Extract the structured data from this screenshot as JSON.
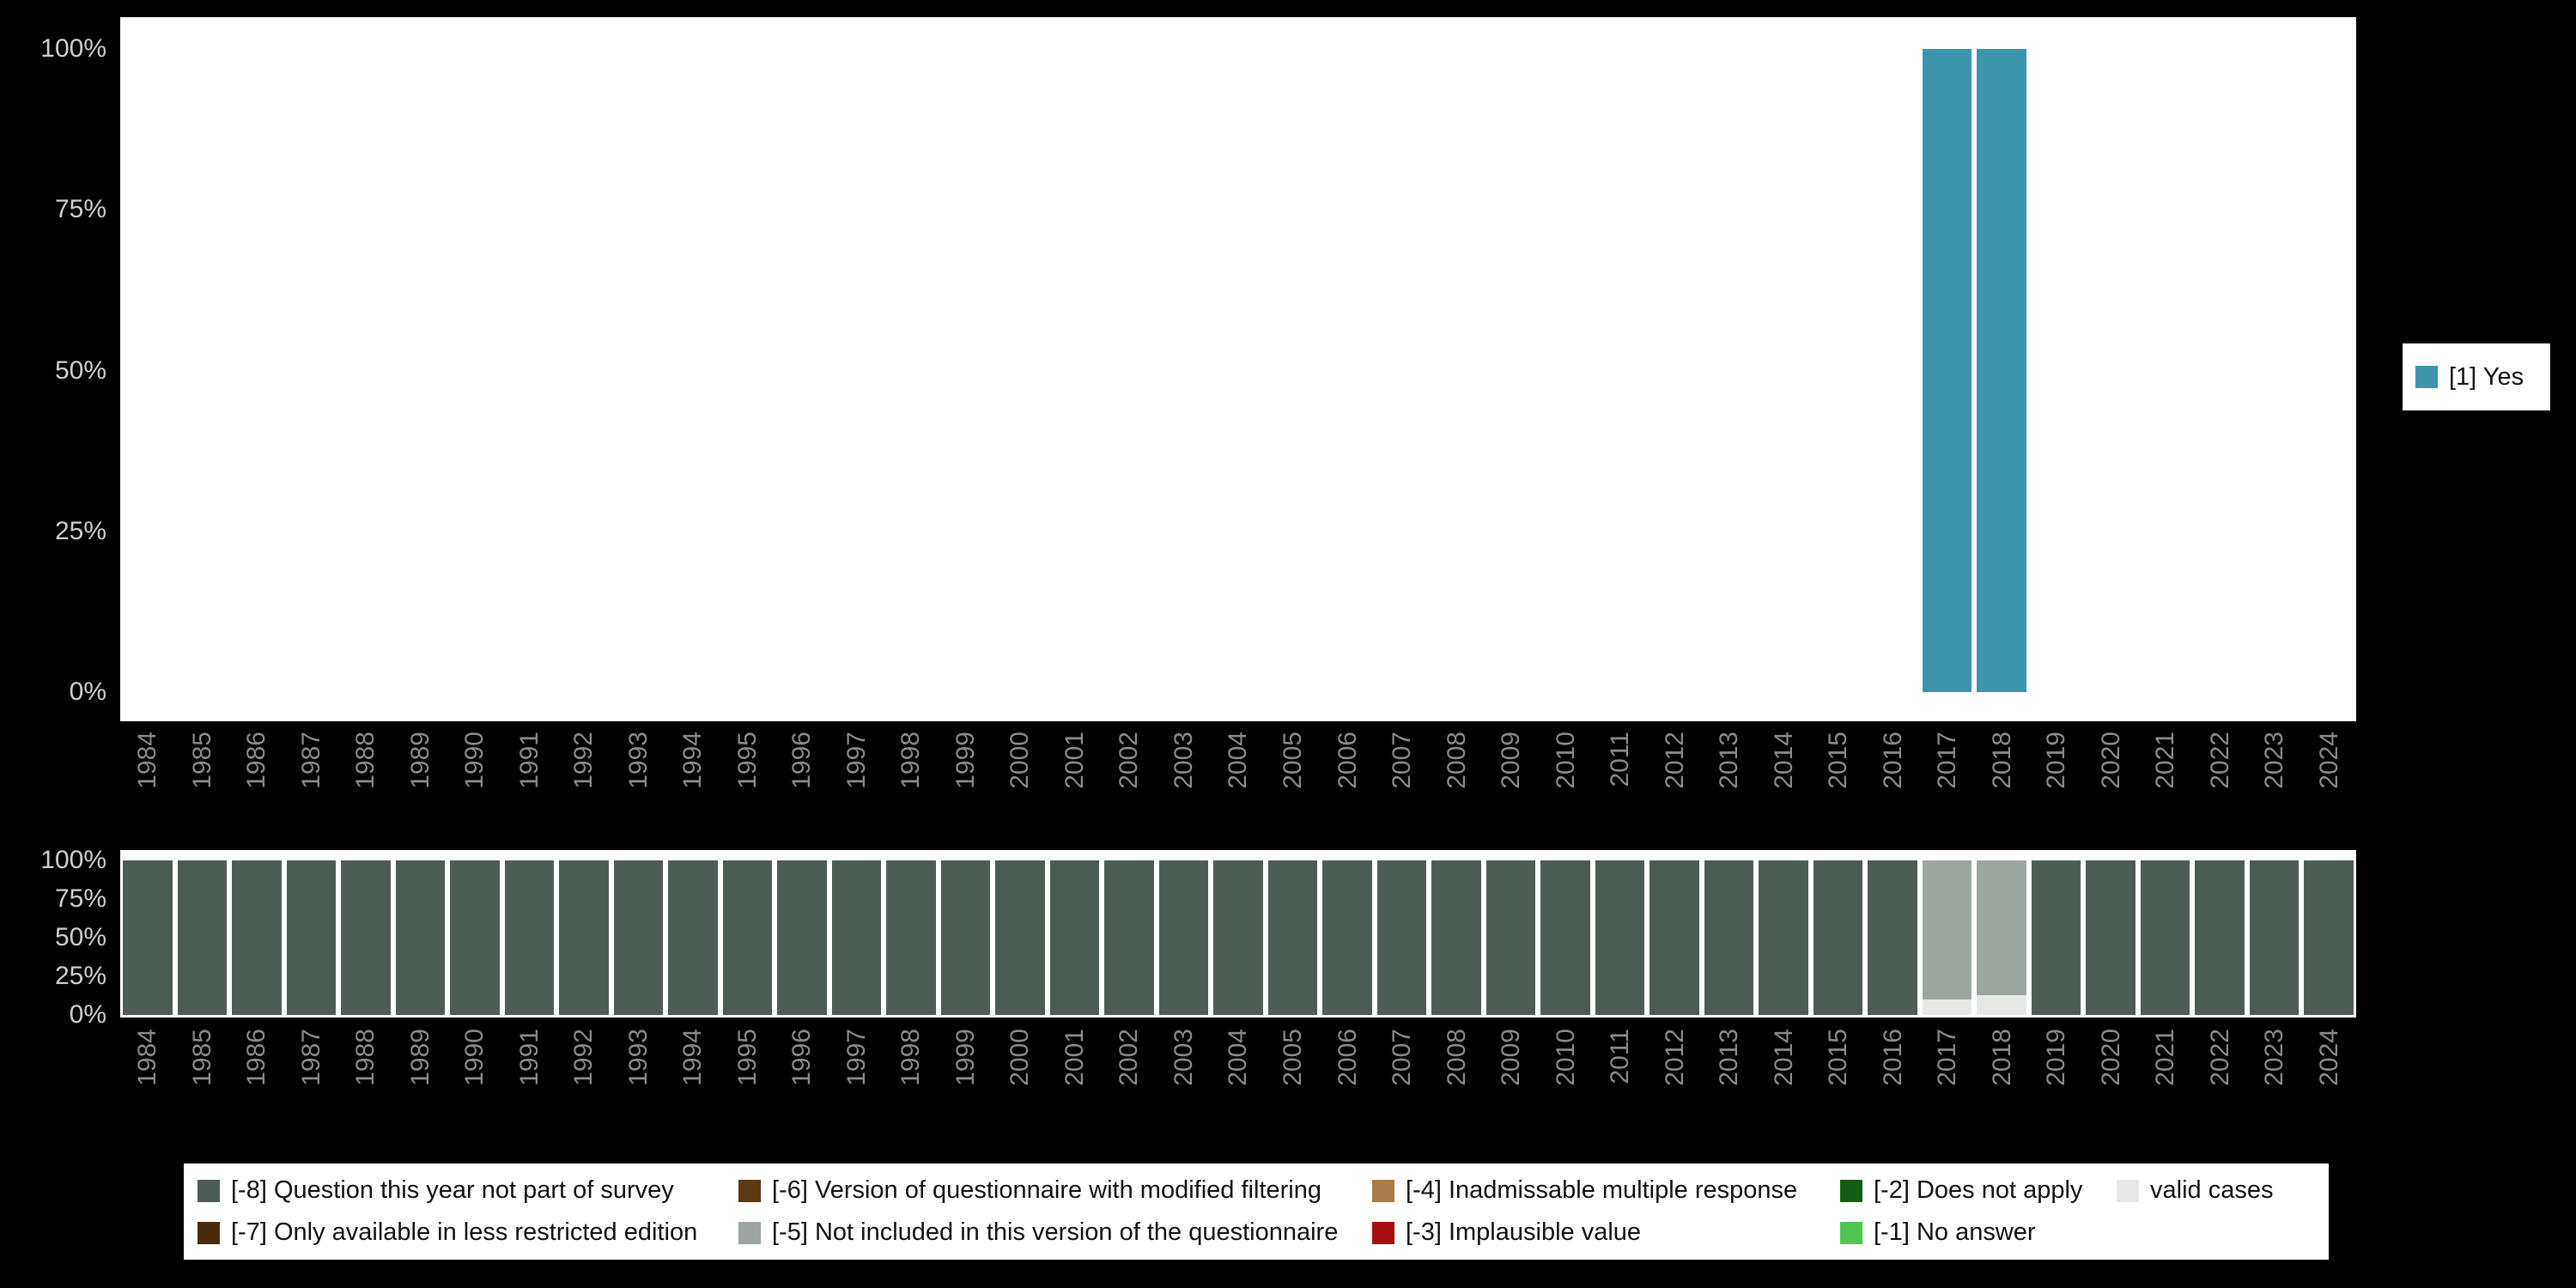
{
  "page": {
    "background": "#000000",
    "plot_background": "#ffffff",
    "y_tick_color": "#cfcfcf",
    "x_tick_color": "#8a8a8a"
  },
  "chart_data": [
    {
      "type": "bar",
      "stacked": true,
      "title": "",
      "xlabel": "",
      "ylabel": "",
      "ylim": [
        0,
        100
      ],
      "grid": false,
      "x_axis_label_rotation": 90,
      "legend_position": "right",
      "yticks": [
        "0%",
        "25%",
        "50%",
        "75%",
        "100%"
      ],
      "x": [
        "1984",
        "1985",
        "1986",
        "1987",
        "1988",
        "1989",
        "1990",
        "1991",
        "1992",
        "1993",
        "1994",
        "1995",
        "1996",
        "1997",
        "1998",
        "1999",
        "2000",
        "2001",
        "2002",
        "2003",
        "2004",
        "2005",
        "2006",
        "2007",
        "2008",
        "2009",
        "2010",
        "2011",
        "2012",
        "2013",
        "2014",
        "2015",
        "2016",
        "2017",
        "2018",
        "2019",
        "2020",
        "2021",
        "2022",
        "2023",
        "2024"
      ],
      "series": [
        {
          "name": "[1] Yes",
          "color": "#3d95ac",
          "values": [
            0,
            0,
            0,
            0,
            0,
            0,
            0,
            0,
            0,
            0,
            0,
            0,
            0,
            0,
            0,
            0,
            0,
            0,
            0,
            0,
            0,
            0,
            0,
            0,
            0,
            0,
            0,
            0,
            0,
            0,
            0,
            0,
            0,
            100,
            100,
            0,
            0,
            0,
            0,
            0,
            0
          ]
        }
      ]
    },
    {
      "type": "bar",
      "stacked": true,
      "title": "",
      "xlabel": "",
      "ylabel": "",
      "ylim": [
        0,
        100
      ],
      "grid": false,
      "x_axis_label_rotation": 90,
      "legend_position": "bottom",
      "yticks": [
        "0%",
        "25%",
        "50%",
        "75%",
        "100%"
      ],
      "x": [
        "1984",
        "1985",
        "1986",
        "1987",
        "1988",
        "1989",
        "1990",
        "1991",
        "1992",
        "1993",
        "1994",
        "1995",
        "1996",
        "1997",
        "1998",
        "1999",
        "2000",
        "2001",
        "2002",
        "2003",
        "2004",
        "2005",
        "2006",
        "2007",
        "2008",
        "2009",
        "2010",
        "2011",
        "2012",
        "2013",
        "2014",
        "2015",
        "2016",
        "2017",
        "2018",
        "2019",
        "2020",
        "2021",
        "2022",
        "2023",
        "2024"
      ],
      "series": [
        {
          "name": "valid cases",
          "color": "#e6e8e6",
          "values": [
            0,
            0,
            0,
            0,
            0,
            0,
            0,
            0,
            0,
            0,
            0,
            0,
            0,
            0,
            0,
            0,
            0,
            0,
            0,
            0,
            0,
            0,
            0,
            0,
            0,
            0,
            0,
            0,
            0,
            0,
            0,
            0,
            0,
            10,
            13,
            0,
            0,
            0,
            0,
            0,
            0
          ]
        },
        {
          "name": "[-5] Not included in this version of the questionnaire",
          "color": "#9ca6a0",
          "values": [
            0,
            0,
            0,
            0,
            0,
            0,
            0,
            0,
            0,
            0,
            0,
            0,
            0,
            0,
            0,
            0,
            0,
            0,
            0,
            0,
            0,
            0,
            0,
            0,
            0,
            0,
            0,
            0,
            0,
            0,
            0,
            0,
            0,
            90,
            87,
            0,
            0,
            0,
            0,
            0,
            0
          ]
        },
        {
          "name": "[-8] Question this year not part of survey",
          "color": "#4e5c56",
          "values": [
            100,
            100,
            100,
            100,
            100,
            100,
            100,
            100,
            100,
            100,
            100,
            100,
            100,
            100,
            100,
            100,
            100,
            100,
            100,
            100,
            100,
            100,
            100,
            100,
            100,
            100,
            100,
            100,
            100,
            100,
            100,
            100,
            100,
            0,
            0,
            100,
            100,
            100,
            100,
            100,
            100
          ]
        }
      ]
    }
  ],
  "legend_right": {
    "items": [
      {
        "label": "[1] Yes",
        "color": "#3d95ac"
      }
    ]
  },
  "legend_bottom": {
    "rows": [
      [
        {
          "label": "[-8] Question this year not part of survey",
          "color": "#4e5c56"
        },
        {
          "label": "[-6] Version of questionnaire with modified filtering",
          "color": "#5d3a14"
        },
        {
          "label": "[-4] Inadmissable multiple response",
          "color": "#ab7b4c"
        },
        {
          "label": "[-2] Does not apply",
          "color": "#155d15"
        },
        {
          "label": "valid cases",
          "color": "#e6e8e6"
        }
      ],
      [
        {
          "label": "[-7] Only available in less restricted edition",
          "color": "#4a2b0d"
        },
        {
          "label": "[-5] Not included in this version of the questionnaire",
          "color": "#9ca6a0"
        },
        {
          "label": "[-3] Implausible value",
          "color": "#a81010"
        },
        {
          "label": "[-1] No answer",
          "color": "#52c451"
        }
      ]
    ]
  }
}
